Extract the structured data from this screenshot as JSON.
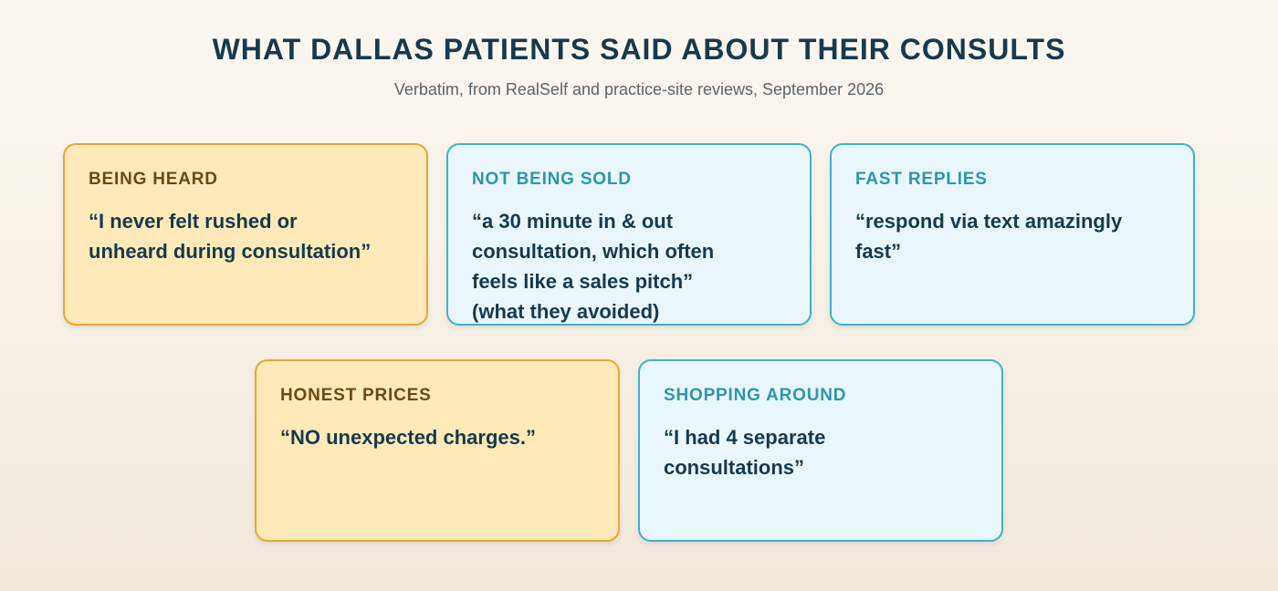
{
  "header": {
    "title": "WHAT DALLAS PATIENTS SAID ABOUT THEIR CONSULTS",
    "subtitle": "Verbatim, from RealSelf and practice-site reviews, September 2026"
  },
  "cards": [
    {
      "label": "BEING HEARD",
      "quote_lines": [
        "“I never felt rushed or",
        "unheard during consultation”"
      ],
      "style": "warm"
    },
    {
      "label": "NOT BEING SOLD",
      "quote_lines": [
        "“a 30 minute in & out",
        "consultation, which often",
        "feels like a sales pitch”",
        "(what they avoided)"
      ],
      "style": "cool"
    },
    {
      "label": "FAST REPLIES",
      "quote_lines": [
        "“respond via text amazingly",
        "fast”"
      ],
      "style": "cool"
    },
    {
      "label": "HONEST PRICES",
      "quote_lines": [
        "“NO unexpected charges.”"
      ],
      "style": "warm"
    },
    {
      "label": "SHOPPING AROUND",
      "quote_lines": [
        "“I had 4 separate",
        "consultations”"
      ],
      "style": "cool"
    }
  ],
  "colors": {
    "warm_fill": "#ffe9b9",
    "warm_border": "#e9a634",
    "cool_fill": "#e9f6fc",
    "cool_border": "#3fb3c7",
    "title": "#163a4e"
  }
}
